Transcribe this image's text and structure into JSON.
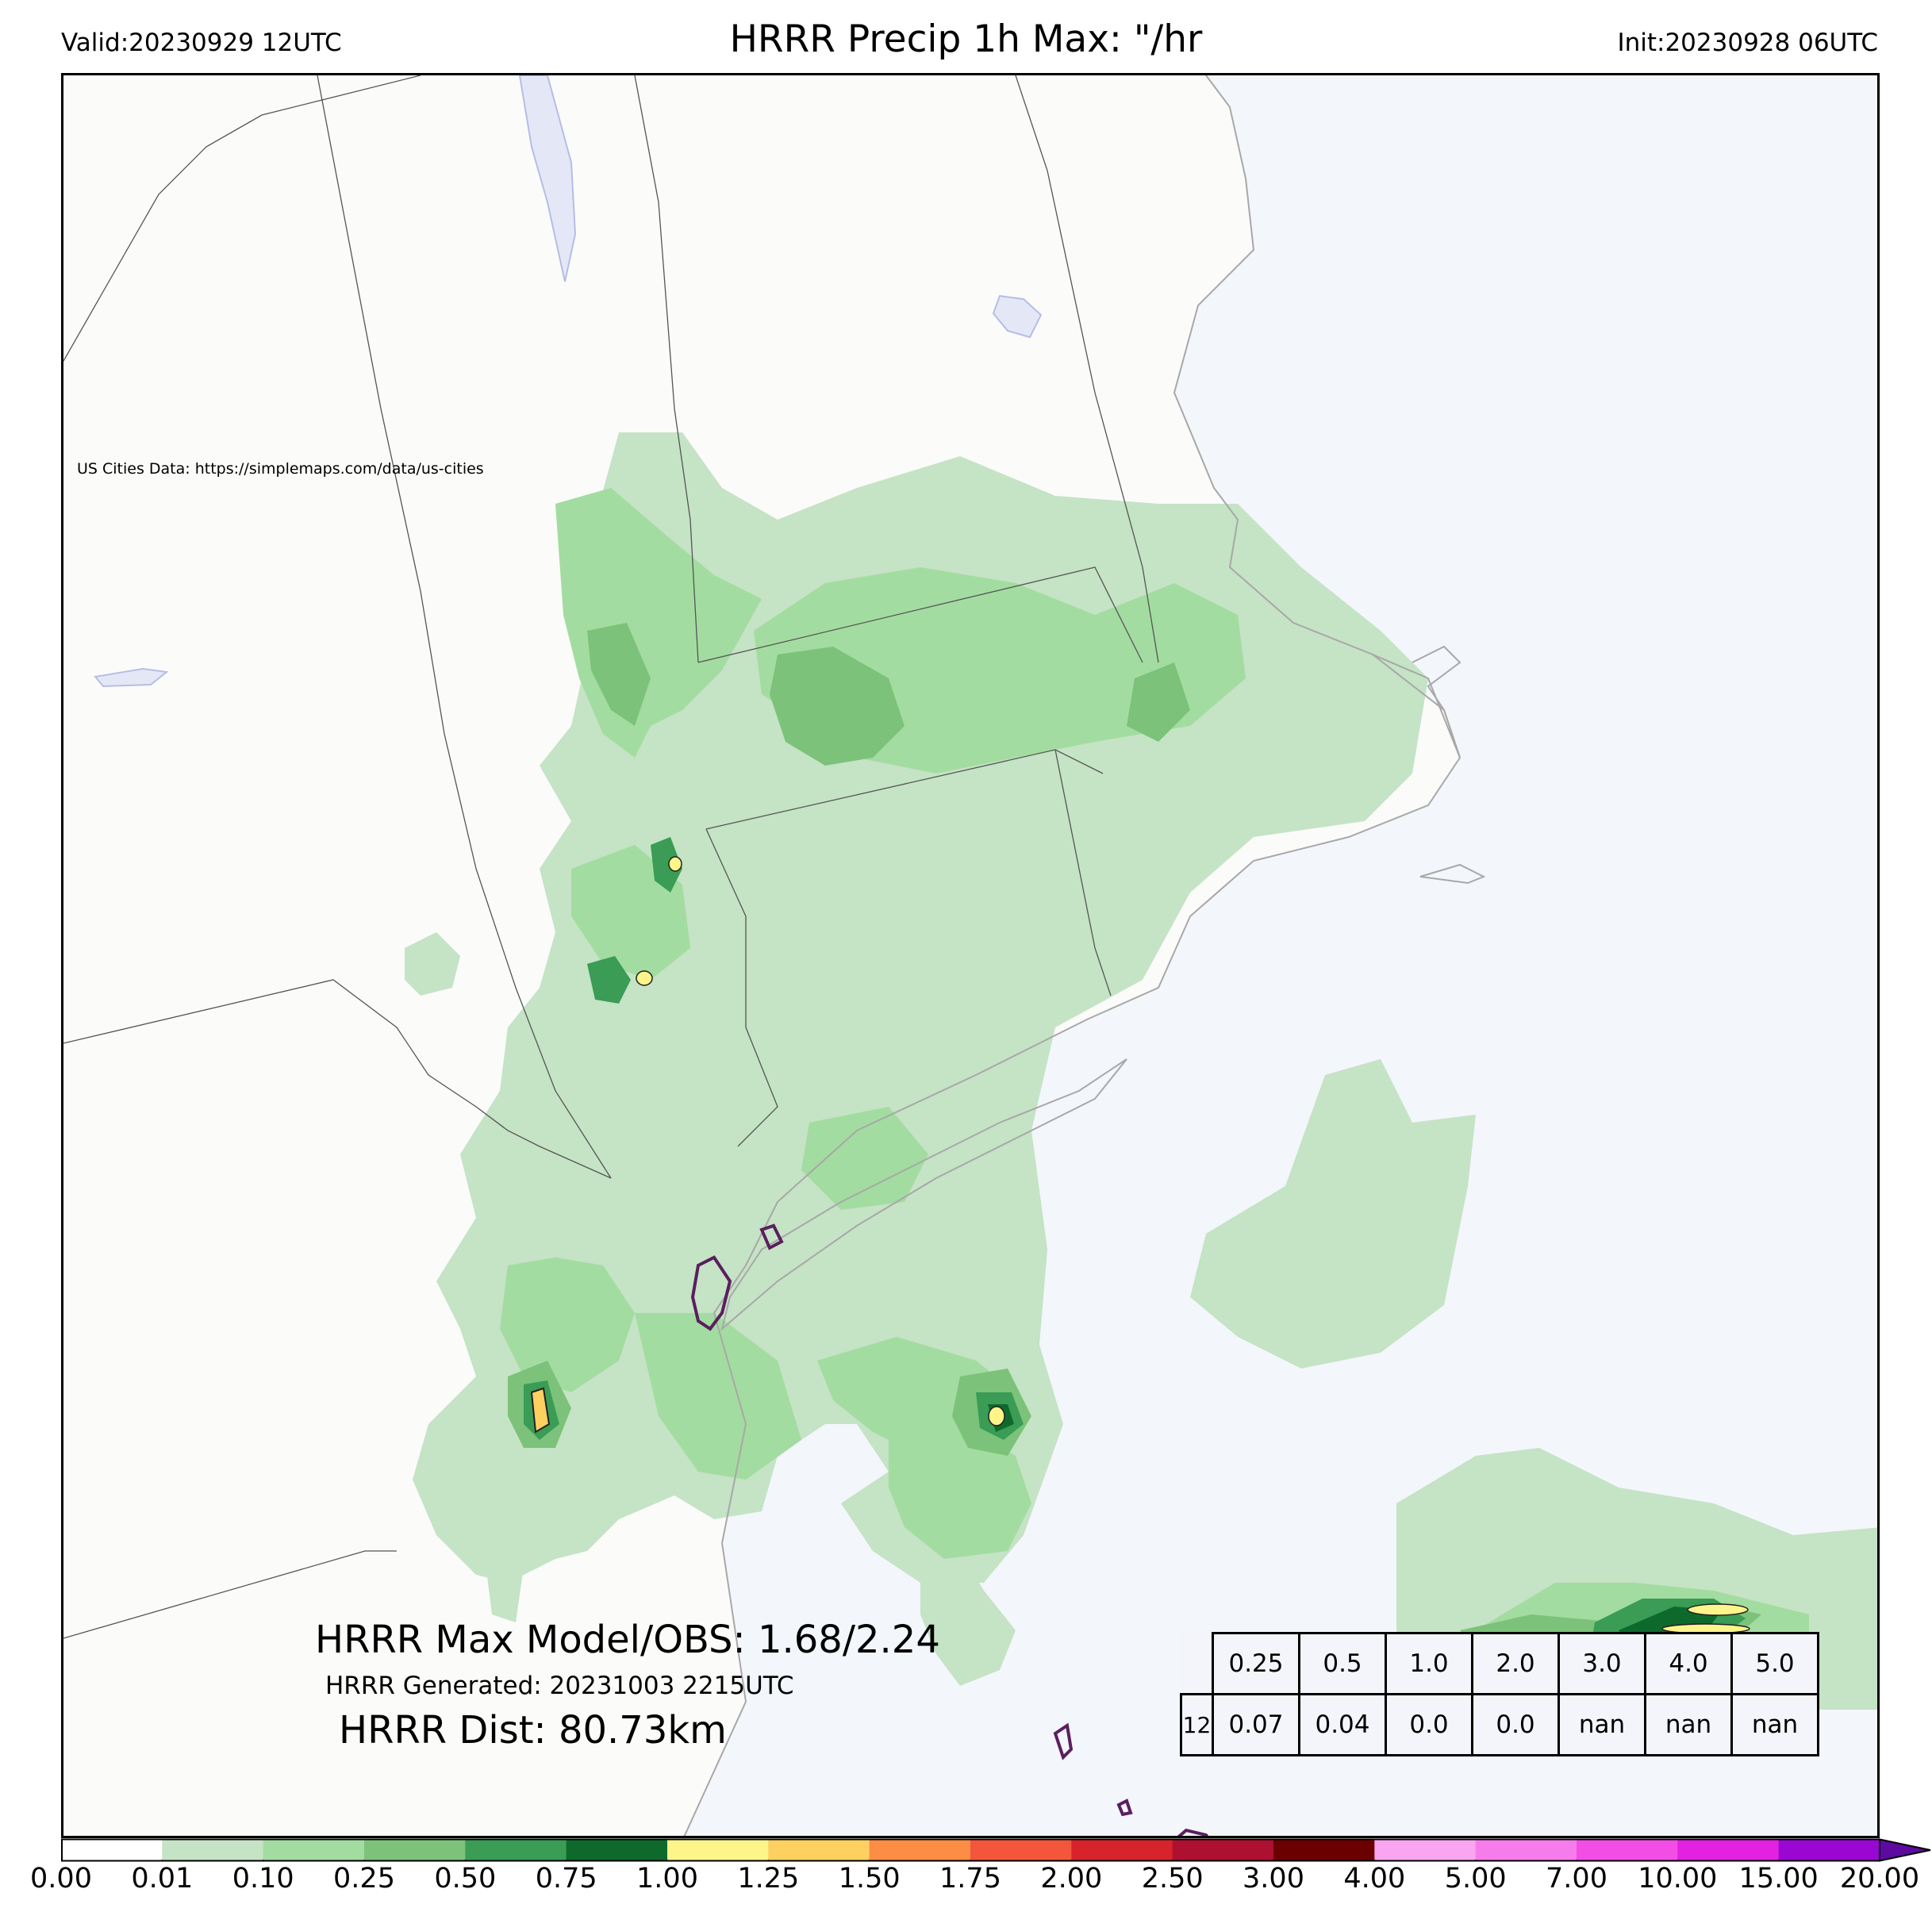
{
  "header": {
    "valid": "Valid:20230929 12UTC",
    "title": "HRRR Precip 1h Max: \"/hr",
    "init": "Init:20230928 06UTC"
  },
  "map": {
    "attribution": "US Cities Data: https://simplemaps.com/data/us-cities",
    "land_color": "#fbfbfa",
    "water_color": "#f3f6fb"
  },
  "annotations": {
    "max_model_obs": "HRRR Max Model/OBS: 1.68/2.24",
    "generated": "HRRR Generated: 20231003 2215UTC",
    "distance": "HRRR Dist: 80.73km"
  },
  "stats_table": {
    "thresholds": [
      "0.25",
      "0.5",
      "1.0",
      "2.0",
      "3.0",
      "4.0",
      "5.0"
    ],
    "values": [
      "0.07",
      "0.04",
      "0.0",
      "0.0",
      "nan",
      "nan",
      "nan"
    ],
    "partial_label": "12"
  },
  "colorbar": {
    "ticks": [
      "0.00",
      "0.01",
      "0.10",
      "0.25",
      "0.50",
      "0.75",
      "1.00",
      "1.25",
      "1.50",
      "1.75",
      "2.00",
      "2.50",
      "3.00",
      "4.00",
      "5.00",
      "7.00",
      "10.00",
      "15.00",
      "20.00"
    ],
    "colors": [
      "#ffffff",
      "#c5e3c5",
      "#a3dca0",
      "#7cc27a",
      "#3a9c55",
      "#0e6a2c",
      "#fdf58a",
      "#fdd060",
      "#fc8d45",
      "#f3563a",
      "#d7232b",
      "#ad1030",
      "#6b0000",
      "#f9a5f0",
      "#f67ceb",
      "#f24ee6",
      "#e221e1",
      "#9a07d2",
      "#5c0aa0"
    ]
  }
}
